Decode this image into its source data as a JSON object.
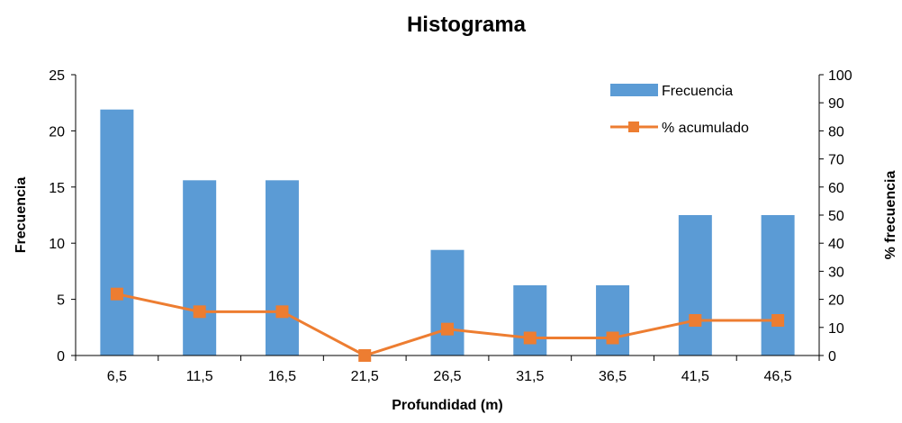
{
  "chart_data": {
    "type": "bar",
    "title": "Histograma",
    "xlabel": "Profundidad (m)",
    "ylabel": "Frecuencia",
    "y2label": "% frecuencia",
    "categories": [
      "6,5",
      "11,5",
      "16,5",
      "21,5",
      "26,5",
      "31,5",
      "36,5",
      "41,5",
      "46,5"
    ],
    "ylim": [
      0,
      25
    ],
    "y2lim": [
      0,
      100
    ],
    "yticks": [
      "0",
      "5",
      "10",
      "15",
      "20",
      "25"
    ],
    "y2ticks": [
      "0",
      "10",
      "20",
      "30",
      "40",
      "50",
      "60",
      "70",
      "80",
      "90",
      "100"
    ],
    "series": [
      {
        "name": "Frecuencia",
        "type": "bar",
        "axis": "left",
        "color": "#5B9BD5",
        "values": [
          21.9,
          15.6,
          15.6,
          0,
          9.4,
          6.25,
          6.25,
          12.5,
          12.5
        ]
      },
      {
        "name": "% acumulado",
        "type": "line",
        "axis": "right",
        "color": "#ED7D31",
        "marker": "square",
        "values": [
          21.9,
          15.6,
          15.6,
          0,
          9.4,
          6.25,
          6.25,
          12.5,
          12.5
        ]
      }
    ],
    "legend": "top-right",
    "grid": false
  }
}
